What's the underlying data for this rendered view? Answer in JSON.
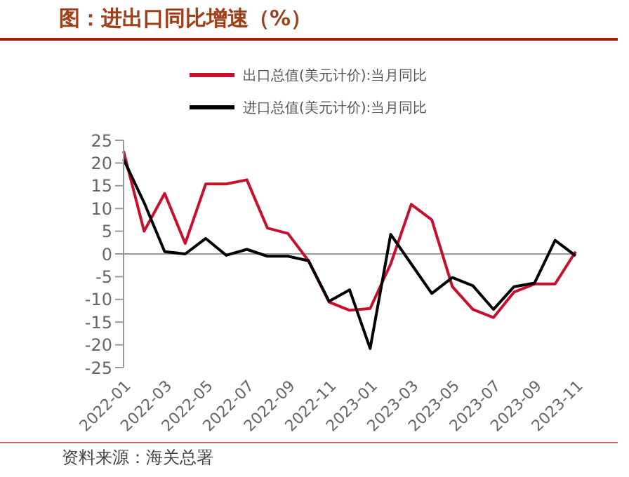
{
  "chart_data": {
    "type": "line",
    "title": "图：进出口同比增速（%）",
    "categories": [
      "2022-01",
      null,
      "2022-03",
      null,
      "2022-05",
      null,
      "2022-07",
      null,
      "2022-09",
      null,
      "2022-11",
      null,
      "2023-01",
      null,
      "2023-03",
      null,
      "2023-05",
      null,
      "2023-07",
      null,
      "2023-09",
      null,
      "2023-11"
    ],
    "series": [
      {
        "name": "出口总值(美元计价):当月同比",
        "color": "#c8102e",
        "values": [
          22.6,
          5.0,
          13.3,
          2.3,
          15.4,
          15.4,
          16.3,
          5.7,
          4.5,
          -1.5,
          -10.6,
          -12.4,
          -12.0,
          -2.2,
          10.9,
          7.5,
          -7.2,
          -12.2,
          -14.0,
          -8.4,
          -6.6,
          -6.6,
          0.5
        ]
      },
      {
        "name": "进口总值(美元计价):当月同比",
        "color": "#000000",
        "values": [
          20.8,
          11.3,
          0.5,
          0.0,
          3.4,
          -0.3,
          1.0,
          -0.5,
          -0.5,
          -1.5,
          -10.4,
          -7.9,
          -20.8,
          4.3,
          -2.2,
          -8.7,
          -5.2,
          -7.0,
          -12.2,
          -7.2,
          -6.4,
          3.0,
          -0.4
        ]
      }
    ],
    "ylim": [
      -25,
      25
    ],
    "yticks": [
      -25,
      -20,
      -15,
      -10,
      -5,
      0,
      5,
      10,
      15,
      20,
      25
    ],
    "ref_lines": [
      {
        "axis": "y",
        "value": 0,
        "color": "#999999"
      }
    ],
    "legend": "top",
    "marker": "none",
    "line_style": "solid",
    "annotations": [
      "资料来源：海关总署"
    ]
  }
}
